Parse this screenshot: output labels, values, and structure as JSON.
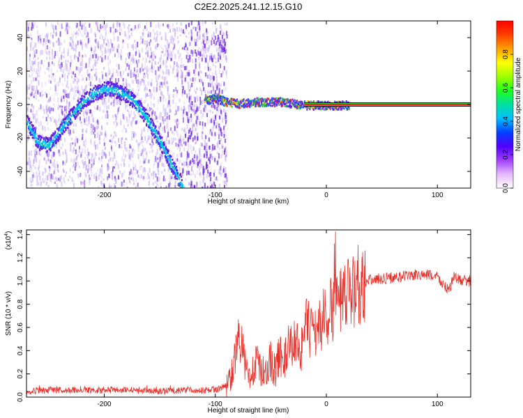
{
  "title": "C2E2.2025.241.12.15.G10",
  "colors": {
    "snr_line": "#e8302a",
    "spectrum_core": "#6a1fe0",
    "spectrum_faint": "#c9b3f5",
    "ridge_hot": "#ff2020",
    "ridge_warm": "#ffd000",
    "ridge_green": "#30d030"
  },
  "chart_data": [
    {
      "type": "heatmap",
      "name": "spectrogram",
      "xlabel": "Height of straight line (km)",
      "ylabel": "Frequency (Hz)",
      "xlim": [
        -270,
        130
      ],
      "ylim": [
        -50,
        50
      ],
      "xticks": [
        -200,
        -100,
        0,
        100
      ],
      "xtick_labels": [
        "-200",
        "-100",
        "0",
        "100"
      ],
      "yticks": [
        -40,
        -20,
        0,
        20,
        40
      ],
      "ytick_labels": [
        "-40",
        "-20",
        "0",
        "20",
        "40"
      ],
      "grid": false,
      "noisy_region_x": [
        -270,
        -90
      ],
      "ridge_curve": [
        {
          "x": -270,
          "y": -10
        },
        {
          "x": -260,
          "y": -22
        },
        {
          "x": -250,
          "y": -24
        },
        {
          "x": -240,
          "y": -15
        },
        {
          "x": -230,
          "y": -6
        },
        {
          "x": -220,
          "y": 2
        },
        {
          "x": -210,
          "y": 7
        },
        {
          "x": -200,
          "y": 10
        },
        {
          "x": -190,
          "y": 9
        },
        {
          "x": -180,
          "y": 6
        },
        {
          "x": -170,
          "y": 0
        },
        {
          "x": -160,
          "y": -10
        },
        {
          "x": -150,
          "y": -22
        },
        {
          "x": -140,
          "y": -35
        },
        {
          "x": -130,
          "y": -48
        }
      ],
      "converged_curve": [
        {
          "x": -110,
          "y": 3
        },
        {
          "x": -100,
          "y": 4
        },
        {
          "x": -90,
          "y": 2
        },
        {
          "x": -80,
          "y": 1
        },
        {
          "x": -60,
          "y": 2
        },
        {
          "x": -40,
          "y": 2
        },
        {
          "x": -20,
          "y": 0
        },
        {
          "x": 0,
          "y": 0
        },
        {
          "x": 130,
          "y": 0
        }
      ],
      "colorbar": {
        "label": "Normalized spectral amplitude",
        "range": [
          0,
          1
        ],
        "ticks": [
          0.0,
          0.2,
          0.4,
          0.6,
          0.8
        ],
        "tick_labels": [
          "0.0",
          "0.2",
          "0.4",
          "0.6",
          "0.8"
        ],
        "colormap": [
          "#ffffff",
          "#e6b8ff",
          "#a040ff",
          "#5000ff",
          "#0040ff",
          "#00c0ff",
          "#00e0a0",
          "#20ff20",
          "#a0ff00",
          "#ffff00",
          "#ffa000",
          "#ff4000",
          "#ff0000"
        ]
      }
    },
    {
      "type": "line",
      "name": "snr",
      "xlabel": "Height of straight line (km)",
      "ylabel": "SNR (10 * v/v)",
      "y_multiplier_label": "(x10",
      "y_multiplier_exp": "4",
      "y_multiplier_close": ")",
      "xlim": [
        -270,
        130
      ],
      "ylim": [
        0,
        1.44
      ],
      "xticks": [
        -200,
        -100,
        0,
        100
      ],
      "xtick_labels": [
        "-200",
        "-100",
        "0",
        "100"
      ],
      "yticks": [
        0.0,
        0.2,
        0.4,
        0.6,
        0.8,
        1.0,
        1.2,
        1.4
      ],
      "ytick_labels": [
        "0.0",
        "0.2",
        "0.4",
        "0.6",
        "0.8",
        "1.0",
        "1.2",
        "1.4"
      ],
      "grid": false,
      "series": [
        {
          "x": [
            -270,
            -250,
            -230,
            -210,
            -190,
            -170,
            -150,
            -130,
            -110,
            -95,
            -88,
            -82,
            -78,
            -74,
            -70,
            -66,
            -62,
            -58,
            -54,
            -50,
            -46,
            -42,
            -38,
            -34,
            -30,
            -26,
            -22,
            -18,
            -14,
            -10,
            -6,
            -2,
            2,
            6,
            8,
            10,
            12,
            16,
            20,
            25,
            30,
            35,
            40,
            50,
            60,
            70,
            80,
            90,
            100,
            105,
            110,
            115,
            120,
            125,
            130
          ],
          "y": [
            0.05,
            0.06,
            0.06,
            0.06,
            0.06,
            0.06,
            0.05,
            0.06,
            0.06,
            0.07,
            0.12,
            0.35,
            0.55,
            0.3,
            0.18,
            0.25,
            0.3,
            0.2,
            0.25,
            0.32,
            0.22,
            0.38,
            0.3,
            0.42,
            0.45,
            0.5,
            0.4,
            0.62,
            0.55,
            0.58,
            0.62,
            0.68,
            0.72,
            0.75,
            1.2,
            0.8,
            0.78,
            0.82,
            0.88,
            0.95,
            0.99,
            1.0,
            1.01,
            1.02,
            1.03,
            1.04,
            1.05,
            1.05,
            1.04,
            0.97,
            0.92,
            1.03,
            1.01,
            1.0,
            1.0
          ]
        }
      ]
    }
  ]
}
